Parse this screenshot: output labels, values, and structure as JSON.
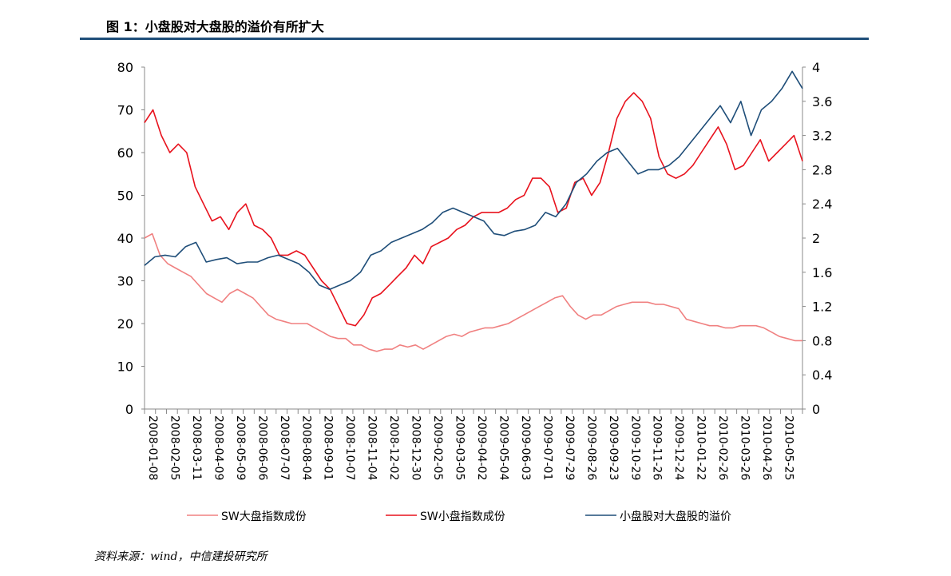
{
  "title": "图 1：小盘股对大盘股的溢价有所扩大",
  "source": "资料来源：wind，中信建投研究所",
  "chart_data": {
    "type": "line",
    "x_tick_labels": [
      "2008-01-08",
      "2008-02-05",
      "2008-03-11",
      "2008-04-09",
      "2008-05-09",
      "2008-06-06",
      "2008-07-07",
      "2008-08-04",
      "2008-09-01",
      "2008-10-07",
      "2008-11-04",
      "2008-12-02",
      "2008-12-30",
      "2009-02-05",
      "2009-03-05",
      "2009-04-02",
      "2009-05-04",
      "2009-06-03",
      "2009-07-01",
      "2009-07-29",
      "2009-08-26",
      "2009-09-23",
      "2009-10-29",
      "2009-11-26",
      "2009-12-24",
      "2010-01-22",
      "2010-02-26",
      "2010-03-26",
      "2010-04-26",
      "2010-05-25"
    ],
    "y_left": {
      "ylim": [
        0,
        80
      ],
      "ticks": [
        0,
        10,
        20,
        30,
        40,
        50,
        60,
        70,
        80
      ]
    },
    "y_right": {
      "ylim": [
        0,
        4
      ],
      "ticks": [
        "0",
        "0.4",
        "0.8",
        "1.2",
        "1.6",
        "2",
        "2.4",
        "2.8",
        "3.2",
        "3.6",
        "4"
      ]
    },
    "legend_position": "bottom",
    "colors": {
      "large": "#f08080",
      "small": "#e8121d",
      "premium": "#1f4e79"
    },
    "series": [
      {
        "name": "SW大盘指数成份",
        "axis": "left",
        "values": [
          40,
          41,
          36,
          34,
          33,
          32,
          31,
          29,
          27,
          26,
          25,
          27,
          28,
          27,
          26,
          24,
          22,
          21,
          20.5,
          20,
          20,
          20,
          19,
          18,
          17,
          16.5,
          16.5,
          15,
          15,
          14,
          13.5,
          14,
          14,
          15,
          14.5,
          15,
          14,
          15,
          16,
          17,
          17.5,
          17,
          18,
          18.5,
          19,
          19,
          19.5,
          20,
          21,
          22,
          23,
          24,
          25,
          26,
          26.5,
          24,
          22,
          21,
          22,
          22,
          23,
          24,
          24.5,
          25,
          25,
          25,
          24.5,
          24.5,
          24,
          23.5,
          21,
          20.5,
          20,
          19.5,
          19.5,
          19,
          19,
          19.5,
          19.5,
          19.5,
          19,
          18,
          17,
          16.5,
          16,
          16
        ]
      },
      {
        "name": "SW小盘指数成份",
        "axis": "left",
        "values": [
          67,
          70,
          64,
          60,
          62,
          60,
          52,
          48,
          44,
          45,
          42,
          46,
          48,
          43,
          42,
          40,
          36,
          36,
          37,
          36,
          33,
          30,
          28,
          24,
          20,
          19.5,
          22,
          26,
          27,
          29,
          31,
          33,
          36,
          34,
          38,
          39,
          40,
          42,
          43,
          45,
          46,
          46,
          46,
          47,
          49,
          50,
          54,
          54,
          52,
          46,
          47,
          53,
          54,
          50,
          53,
          60,
          68,
          72,
          74,
          72,
          68,
          59,
          55,
          54,
          55,
          57,
          60,
          63,
          66,
          62,
          56,
          57,
          60,
          63,
          58,
          60,
          62,
          64,
          58
        ]
      },
      {
        "name": "小盘股对大盘股的溢价",
        "axis": "right",
        "values": [
          1.68,
          1.78,
          1.8,
          1.78,
          1.9,
          1.95,
          1.72,
          1.75,
          1.77,
          1.7,
          1.72,
          1.72,
          1.77,
          1.8,
          1.75,
          1.7,
          1.6,
          1.45,
          1.4,
          1.45,
          1.5,
          1.6,
          1.8,
          1.85,
          1.95,
          2,
          2.05,
          2.1,
          2.18,
          2.3,
          2.35,
          2.3,
          2.25,
          2.2,
          2.05,
          2.03,
          2.08,
          2.1,
          2.15,
          2.3,
          2.25,
          2.4,
          2.65,
          2.75,
          2.9,
          3.0,
          3.05,
          2.9,
          2.75,
          2.8,
          2.8,
          2.85,
          2.95,
          3.1,
          3.25,
          3.4,
          3.55,
          3.35,
          3.6,
          3.2,
          3.5,
          3.6,
          3.75,
          3.95,
          3.75
        ]
      }
    ]
  }
}
